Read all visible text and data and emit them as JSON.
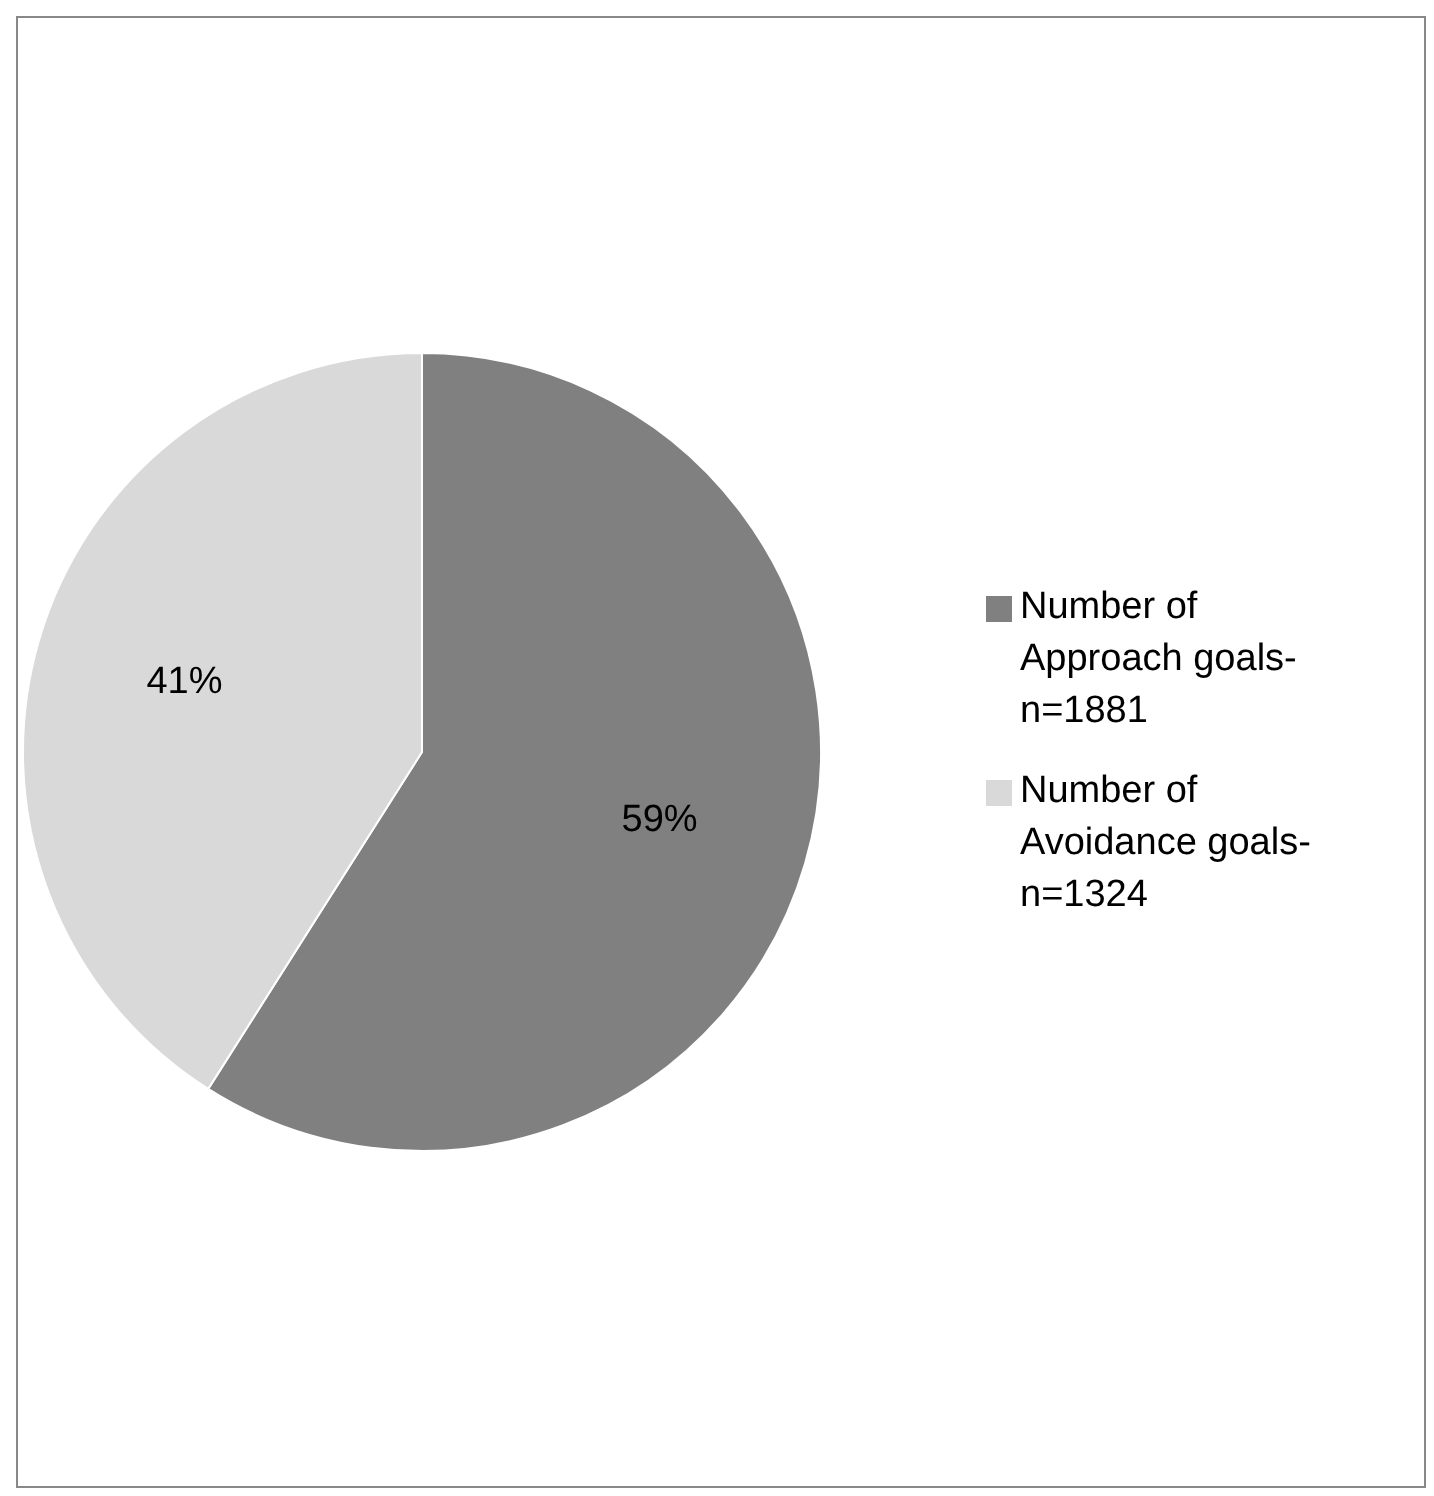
{
  "chart_data": {
    "type": "pie",
    "categories": [
      "Number of Approach goals-n=1881",
      "Number of Avoidance goals-n=1324"
    ],
    "values": [
      59,
      41
    ],
    "colors": [
      "#808080",
      "#d9d9d9"
    ],
    "value_labels": [
      "59%",
      "41%"
    ],
    "legend": "right"
  }
}
